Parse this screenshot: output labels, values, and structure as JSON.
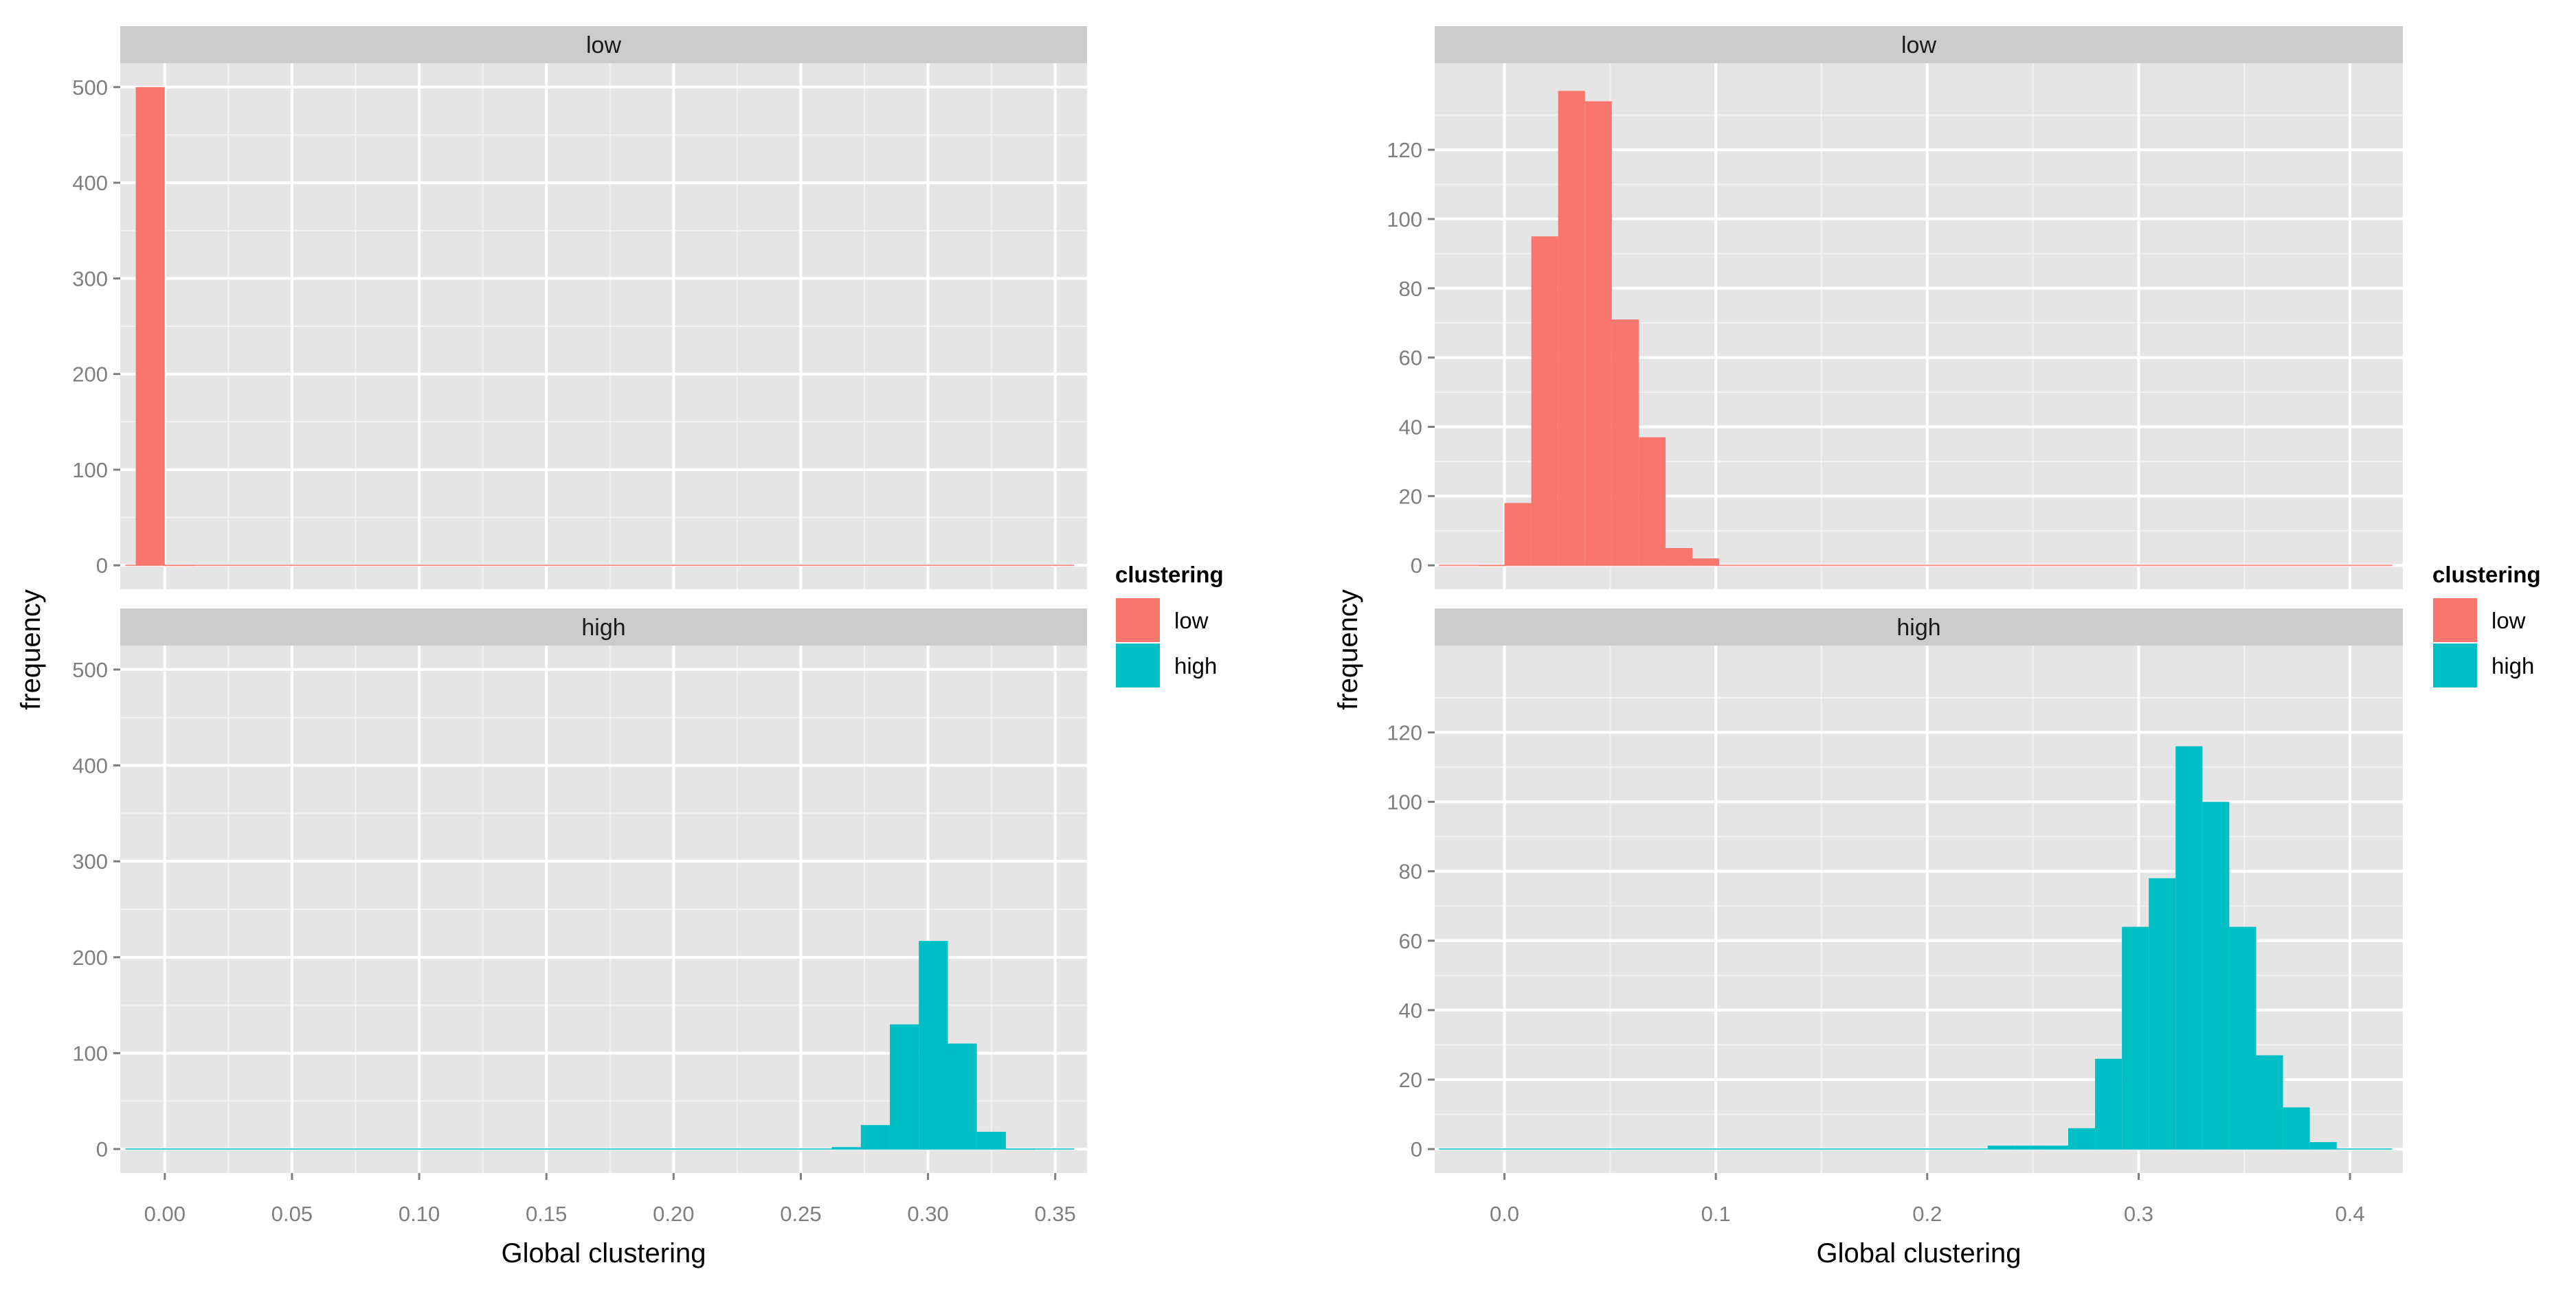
{
  "chart_data": [
    {
      "type": "bar",
      "title": "",
      "xlabel": "Global clustering",
      "ylabel": "frequency",
      "facet_by": "clustering",
      "facets": [
        "low",
        "high"
      ],
      "grid": true,
      "legend_placement": "right",
      "xlim": [
        -0.0175,
        0.3625
      ],
      "ylim": [
        -25,
        525
      ],
      "x_ticks": [
        "0.00",
        "0.05",
        "0.10",
        "0.15",
        "0.20",
        "0.25",
        "0.30",
        "0.35"
      ],
      "x_tick_values": [
        0.0,
        0.05,
        0.1,
        0.15,
        0.2,
        0.25,
        0.3,
        0.35
      ],
      "y_ticks": [
        "0",
        "100",
        "200",
        "300",
        "400",
        "500"
      ],
      "y_tick_values": [
        0,
        100,
        200,
        300,
        400,
        500
      ],
      "bin_width": 0.0114,
      "series": [
        {
          "name": "low",
          "bins_start": [
            -0.0114,
            0.0
          ],
          "values": [
            500,
            0
          ]
        },
        {
          "name": "high",
          "bins_start": [
            0.2622,
            0.2736,
            0.285,
            0.2964,
            0.3078,
            0.3192,
            0.3306
          ],
          "values": [
            2,
            25,
            130,
            217,
            110,
            18,
            0
          ]
        }
      ]
    },
    {
      "type": "bar",
      "title": "",
      "xlabel": "Global clustering",
      "ylabel": "frequency",
      "facet_by": "clustering",
      "facets": [
        "low",
        "high"
      ],
      "grid": true,
      "legend_placement": "right",
      "xlim": [
        -0.033,
        0.425
      ],
      "ylim": [
        -6.9,
        145
      ],
      "x_ticks": [
        "0.0",
        "0.1",
        "0.2",
        "0.3",
        "0.4"
      ],
      "x_tick_values": [
        0.0,
        0.1,
        0.2,
        0.3,
        0.4
      ],
      "y_ticks": [
        "0",
        "20",
        "40",
        "60",
        "80",
        "100",
        "120"
      ],
      "y_tick_values": [
        0,
        20,
        40,
        60,
        80,
        100,
        120
      ],
      "bin_width": 0.0127,
      "series": [
        {
          "name": "low",
          "bins_start": [
            -0.0127,
            0.0,
            0.0127,
            0.0254,
            0.0381,
            0.0508,
            0.0635,
            0.0762,
            0.0889
          ],
          "values": [
            0,
            18,
            95,
            137,
            134,
            71,
            37,
            5,
            2
          ]
        },
        {
          "name": "high",
          "bins_start": [
            0.2286,
            0.2413,
            0.254,
            0.2667,
            0.2794,
            0.2921,
            0.3048,
            0.3175,
            0.3302,
            0.3429,
            0.3556,
            0.3683,
            0.381
          ],
          "values": [
            1,
            1,
            1,
            6,
            26,
            64,
            78,
            116,
            100,
            64,
            27,
            12,
            2
          ]
        }
      ]
    }
  ],
  "legend": {
    "title": "clustering",
    "items": [
      {
        "label": "low",
        "color": "#F8766D"
      },
      {
        "label": "high",
        "color": "#00BFC4"
      }
    ]
  },
  "colors": {
    "panel_bg": "#E5E5E5",
    "strip_bg": "#CCCCCC",
    "grid_major": "#FFFFFF",
    "grid_minor": "#F2F2F2",
    "tick_text": "#7F7F7F",
    "low": "#F8766D",
    "high": "#00BFC4"
  }
}
